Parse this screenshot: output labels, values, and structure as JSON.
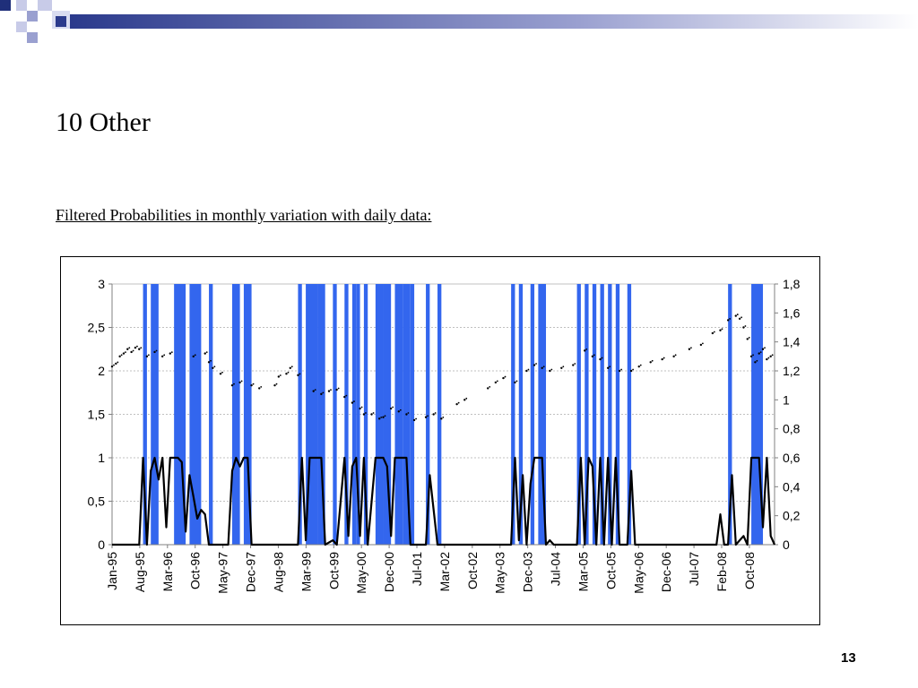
{
  "slide": {
    "title": "10 Other",
    "subtitle": "Filtered Probabilities in monthly variation with daily data:",
    "page_number": "13"
  },
  "colors": {
    "regime_band": "#3366ee",
    "probability_line": "#000000",
    "price_dots": "#000000",
    "grid": "#c0c0c0",
    "axis": "#808080"
  },
  "chart_data": {
    "type": "bar",
    "title": "",
    "xlabel": "",
    "ylabel": "",
    "x_ticks": [
      "Jan-95",
      "Aug-95",
      "Mar-96",
      "Oct-96",
      "May-97",
      "Dec-97",
      "Aug-98",
      "Mar-99",
      "Oct-99",
      "May-00",
      "Dec-00",
      "Jul-01",
      "Mar-02",
      "Oct-02",
      "May-03",
      "Dec-03",
      "Jul-04",
      "Mar-05",
      "Oct-05",
      "May-06",
      "Dec-06",
      "Jul-07",
      "Feb-08",
      "Oct-08"
    ],
    "x_range": [
      "1995-01",
      "2009-04"
    ],
    "y_left": {
      "range": [
        0,
        3
      ],
      "ticks": [
        "0",
        "0,5",
        "1",
        "1,5",
        "2",
        "2,5",
        "3"
      ]
    },
    "y_right": {
      "range": [
        0,
        1.8
      ],
      "ticks": [
        "0",
        "0,2",
        "0,4",
        "0,6",
        "0,8",
        "1",
        "1,2",
        "1,4",
        "1,6",
        "1,8"
      ]
    },
    "grid": true,
    "legend": "none",
    "series": [
      {
        "type": "area",
        "axis": "left",
        "value": 3,
        "regime_periods": [
          [
            "1995-09",
            "1995-09"
          ],
          [
            "1995-11",
            "1995-12"
          ],
          [
            "1996-05",
            "1996-07"
          ],
          [
            "1996-09",
            "1996-11"
          ],
          [
            "1997-02",
            "1997-02"
          ],
          [
            "1997-08",
            "1997-09"
          ],
          [
            "1997-11",
            "1997-12"
          ],
          [
            "1999-01",
            "1999-01"
          ],
          [
            "1999-03",
            "1999-05"
          ],
          [
            "1999-06",
            "1999-07"
          ],
          [
            "1999-10",
            "1999-10"
          ],
          [
            "2000-01",
            "2000-01"
          ],
          [
            "2000-03",
            "2000-03"
          ],
          [
            "2000-04",
            "2000-04"
          ],
          [
            "2000-06",
            "2000-06"
          ],
          [
            "2000-09",
            "2000-10"
          ],
          [
            "2000-11",
            "2000-12"
          ],
          [
            "2001-02",
            "2001-03"
          ],
          [
            "2001-04",
            "2001-05"
          ],
          [
            "2001-06",
            "2001-06"
          ],
          [
            "2001-10",
            "2001-10"
          ],
          [
            "2002-01",
            "2002-01"
          ],
          [
            "2003-08",
            "2003-08"
          ],
          [
            "2003-10",
            "2003-10"
          ],
          [
            "2004-01",
            "2004-01"
          ],
          [
            "2004-03",
            "2004-04"
          ],
          [
            "2005-01",
            "2005-01"
          ],
          [
            "2005-03",
            "2005-03"
          ],
          [
            "2005-05",
            "2005-05"
          ],
          [
            "2005-07",
            "2005-07"
          ],
          [
            "2005-09",
            "2005-09"
          ],
          [
            "2005-11",
            "2005-11"
          ],
          [
            "2006-02",
            "2006-02"
          ],
          [
            "2008-04",
            "2008-04"
          ],
          [
            "2008-10",
            "2008-12"
          ]
        ]
      },
      {
        "type": "line",
        "axis": "left",
        "points": [
          [
            "1995-01",
            0
          ],
          [
            "1995-08",
            0
          ],
          [
            "1995-09",
            1
          ],
          [
            "1995-10",
            0
          ],
          [
            "1995-11",
            0.85
          ],
          [
            "1995-12",
            1
          ],
          [
            "1996-01",
            0.75
          ],
          [
            "1996-02",
            1
          ],
          [
            "1996-03",
            0.2
          ],
          [
            "1996-04",
            1
          ],
          [
            "1996-05",
            1
          ],
          [
            "1996-06",
            1
          ],
          [
            "1996-07",
            0.95
          ],
          [
            "1996-08",
            0.15
          ],
          [
            "1996-09",
            0.8
          ],
          [
            "1996-10",
            0.55
          ],
          [
            "1996-11",
            0.3
          ],
          [
            "1996-12",
            0.4
          ],
          [
            "1997-01",
            0.35
          ],
          [
            "1997-02",
            0
          ],
          [
            "1997-07",
            0
          ],
          [
            "1997-08",
            0.85
          ],
          [
            "1997-09",
            1
          ],
          [
            "1997-10",
            0.9
          ],
          [
            "1997-11",
            1
          ],
          [
            "1997-12",
            1
          ],
          [
            "1998-01",
            0
          ],
          [
            "1999-01",
            0
          ],
          [
            "1999-02",
            1
          ],
          [
            "1999-03",
            0.05
          ],
          [
            "1999-04",
            1
          ],
          [
            "1999-05",
            1
          ],
          [
            "1999-06",
            1
          ],
          [
            "1999-07",
            1
          ],
          [
            "1999-08",
            0
          ],
          [
            "1999-10",
            0.05
          ],
          [
            "1999-11",
            0
          ],
          [
            "2000-01",
            1
          ],
          [
            "2000-02",
            0.1
          ],
          [
            "2000-03",
            0.9
          ],
          [
            "2000-04",
            1
          ],
          [
            "2000-05",
            0.1
          ],
          [
            "2000-06",
            1
          ],
          [
            "2000-07",
            0
          ],
          [
            "2000-09",
            1
          ],
          [
            "2000-10",
            1
          ],
          [
            "2000-11",
            1
          ],
          [
            "2000-12",
            0.9
          ],
          [
            "2001-01",
            0.1
          ],
          [
            "2001-02",
            1
          ],
          [
            "2001-03",
            1
          ],
          [
            "2001-04",
            1
          ],
          [
            "2001-05",
            1
          ],
          [
            "2001-06",
            0
          ],
          [
            "2001-10",
            0
          ],
          [
            "2001-11",
            0.8
          ],
          [
            "2002-01",
            0
          ],
          [
            "2003-08",
            0
          ],
          [
            "2003-09",
            1
          ],
          [
            "2003-10",
            0.05
          ],
          [
            "2003-11",
            0.8
          ],
          [
            "2003-12",
            0
          ],
          [
            "2004-01",
            0.7
          ],
          [
            "2004-02",
            1
          ],
          [
            "2004-03",
            1
          ],
          [
            "2004-04",
            1
          ],
          [
            "2004-05",
            0
          ],
          [
            "2004-06",
            0.05
          ],
          [
            "2004-07",
            0
          ],
          [
            "2005-01",
            0
          ],
          [
            "2005-02",
            1
          ],
          [
            "2005-03",
            0
          ],
          [
            "2005-04",
            1
          ],
          [
            "2005-05",
            0.9
          ],
          [
            "2005-06",
            0
          ],
          [
            "2005-07",
            1
          ],
          [
            "2005-08",
            0
          ],
          [
            "2005-09",
            1
          ],
          [
            "2005-10",
            0
          ],
          [
            "2005-11",
            1
          ],
          [
            "2005-12",
            0
          ],
          [
            "2006-02",
            0
          ],
          [
            "2006-03",
            0.85
          ],
          [
            "2006-04",
            0
          ],
          [
            "2006-06",
            0
          ],
          [
            "2006-07",
            0
          ],
          [
            "2008-01",
            0
          ],
          [
            "2008-02",
            0.35
          ],
          [
            "2008-03",
            0
          ],
          [
            "2008-04",
            0
          ],
          [
            "2008-05",
            0.8
          ],
          [
            "2008-06",
            0
          ],
          [
            "2008-08",
            0.1
          ],
          [
            "2008-09",
            0
          ],
          [
            "2008-10",
            1
          ],
          [
            "2008-11",
            1
          ],
          [
            "2008-12",
            1
          ],
          [
            "2009-01",
            0.2
          ],
          [
            "2009-02",
            1
          ],
          [
            "2009-03",
            0.1
          ],
          [
            "2009-04",
            0
          ]
        ]
      },
      {
        "type": "scatter",
        "axis": "right",
        "points": [
          [
            "1995-01",
            1.23
          ],
          [
            "1995-02",
            1.25
          ],
          [
            "1995-03",
            1.3
          ],
          [
            "1995-04",
            1.32
          ],
          [
            "1995-05",
            1.35
          ],
          [
            "1995-06",
            1.33
          ],
          [
            "1995-07",
            1.36
          ],
          [
            "1995-08",
            1.35
          ],
          [
            "1995-10",
            1.3
          ],
          [
            "1995-12",
            1.33
          ],
          [
            "1996-02",
            1.3
          ],
          [
            "1996-04",
            1.32
          ],
          [
            "1996-10",
            1.3
          ],
          [
            "1997-01",
            1.32
          ],
          [
            "1997-02",
            1.26
          ],
          [
            "1997-03",
            1.22
          ],
          [
            "1997-05",
            1.18
          ],
          [
            "1997-08",
            1.1
          ],
          [
            "1997-10",
            1.12
          ],
          [
            "1998-01",
            1.1
          ],
          [
            "1998-03",
            1.08
          ],
          [
            "1998-07",
            1.1
          ],
          [
            "1998-08",
            1.16
          ],
          [
            "1998-10",
            1.18
          ],
          [
            "1998-11",
            1.22
          ],
          [
            "1999-01",
            1.17
          ],
          [
            "1999-05",
            1.06
          ],
          [
            "1999-07",
            1.04
          ],
          [
            "1999-09",
            1.06
          ],
          [
            "1999-11",
            1.07
          ],
          [
            "2000-01",
            1.02
          ],
          [
            "2000-03",
            0.98
          ],
          [
            "2000-05",
            0.94
          ],
          [
            "2000-06",
            0.9
          ],
          [
            "2000-08",
            0.9
          ],
          [
            "2000-10",
            0.87
          ],
          [
            "2000-11",
            0.88
          ],
          [
            "2001-01",
            0.94
          ],
          [
            "2001-03",
            0.92
          ],
          [
            "2001-05",
            0.9
          ],
          [
            "2001-07",
            0.86
          ],
          [
            "2001-10",
            0.88
          ],
          [
            "2001-12",
            0.9
          ],
          [
            "2002-02",
            0.87
          ],
          [
            "2002-06",
            0.97
          ],
          [
            "2002-08",
            1
          ],
          [
            "2003-02",
            1.08
          ],
          [
            "2003-04",
            1.12
          ],
          [
            "2003-06",
            1.15
          ],
          [
            "2003-09",
            1.12
          ],
          [
            "2003-12",
            1.2
          ],
          [
            "2004-02",
            1.24
          ],
          [
            "2004-04",
            1.22
          ],
          [
            "2004-06",
            1.2
          ],
          [
            "2004-09",
            1.22
          ],
          [
            "2004-12",
            1.24
          ],
          [
            "2005-03",
            1.34
          ],
          [
            "2005-05",
            1.3
          ],
          [
            "2005-07",
            1.28
          ],
          [
            "2005-09",
            1.22
          ],
          [
            "2005-12",
            1.2
          ],
          [
            "2006-03",
            1.2
          ],
          [
            "2006-05",
            1.23
          ],
          [
            "2006-08",
            1.26
          ],
          [
            "2006-11",
            1.28
          ],
          [
            "2007-02",
            1.3
          ],
          [
            "2007-06",
            1.35
          ],
          [
            "2007-09",
            1.38
          ],
          [
            "2007-12",
            1.46
          ],
          [
            "2008-02",
            1.48
          ],
          [
            "2008-04",
            1.55
          ],
          [
            "2008-06",
            1.58
          ],
          [
            "2008-07",
            1.56
          ],
          [
            "2008-08",
            1.5
          ],
          [
            "2008-09",
            1.42
          ],
          [
            "2008-10",
            1.3
          ],
          [
            "2008-11",
            1.26
          ],
          [
            "2008-12",
            1.32
          ],
          [
            "2009-01",
            1.35
          ],
          [
            "2009-02",
            1.28
          ],
          [
            "2009-03",
            1.3
          ]
        ]
      }
    ]
  }
}
